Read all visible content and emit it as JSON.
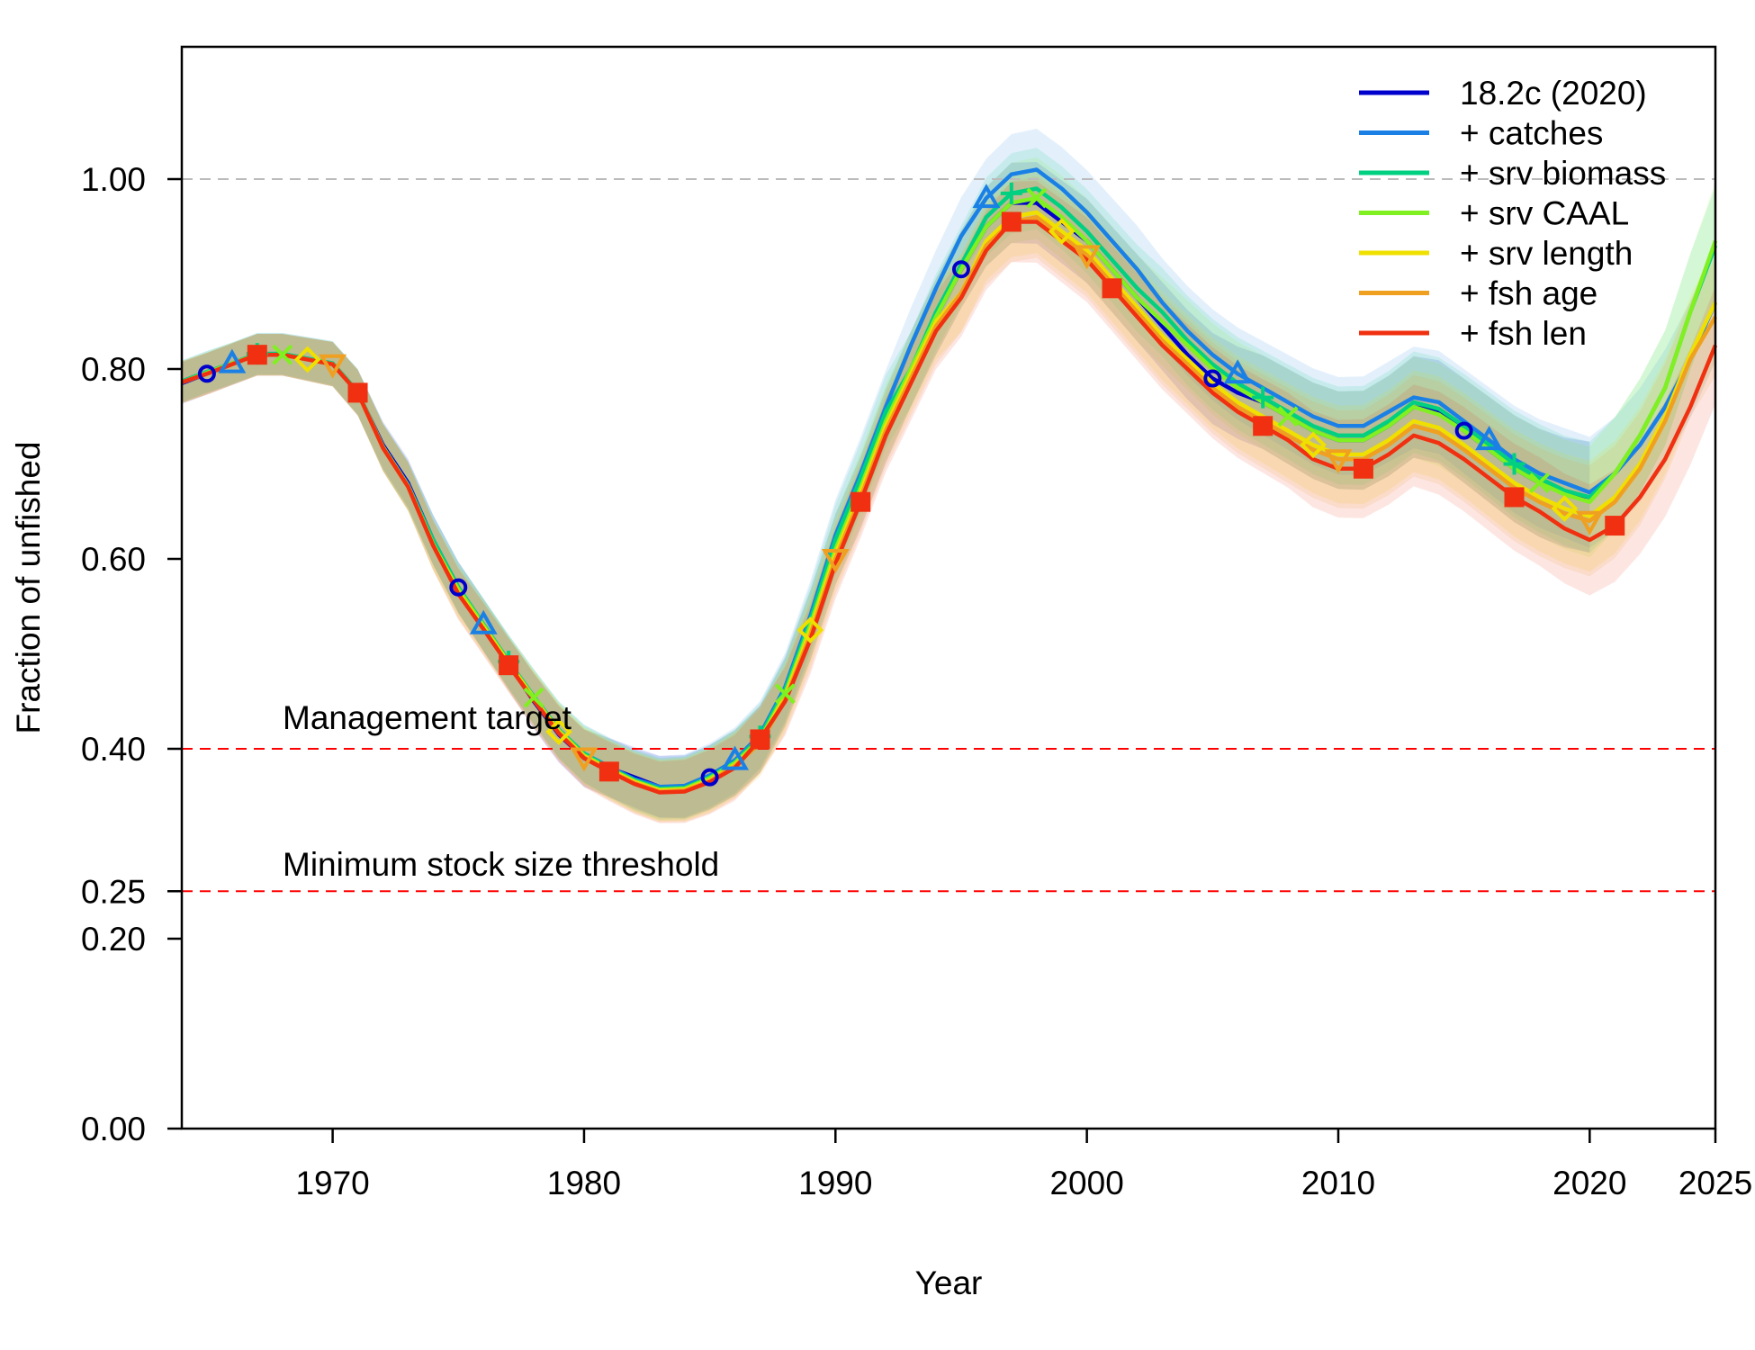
{
  "chart_data": {
    "type": "line",
    "xlabel": "Year",
    "ylabel": "Fraction of unfished",
    "xlim": [
      1964,
      2025
    ],
    "ylim": [
      0,
      1.1
    ],
    "x_ticks": [
      1970,
      1980,
      1990,
      2000,
      2010,
      2020,
      2025
    ],
    "x_tick_labels": [
      "1970",
      "1980",
      "1990",
      "2000",
      "2010",
      "2020",
      "2025"
    ],
    "y_ticks": [
      0,
      0.2,
      0.25,
      0.4,
      0.6,
      0.8,
      1.0
    ],
    "y_tick_labels": [
      "0.00",
      "0.20",
      "0.25",
      "0.40",
      "0.60",
      "0.80",
      "1.00"
    ],
    "grid": false,
    "legend_position": "top-right",
    "reference_lines": [
      {
        "y": 1.0,
        "color": "#bbbbbb",
        "label": ""
      },
      {
        "y": 0.4,
        "color": "#ff0000",
        "label": "Management target"
      },
      {
        "y": 0.25,
        "color": "#ff0000",
        "label": "Minimum stock size threshold"
      }
    ],
    "years": [
      1964,
      1965,
      1966,
      1967,
      1968,
      1969,
      1970,
      1971,
      1972,
      1973,
      1974,
      1975,
      1976,
      1977,
      1978,
      1979,
      1980,
      1981,
      1982,
      1983,
      1984,
      1985,
      1986,
      1987,
      1988,
      1989,
      1990,
      1991,
      1992,
      1993,
      1994,
      1995,
      1996,
      1997,
      1998,
      1999,
      2000,
      2001,
      2002,
      2003,
      2004,
      2005,
      2006,
      2007,
      2008,
      2009,
      2010,
      2011,
      2012,
      2013,
      2014,
      2015,
      2016,
      2017,
      2018,
      2019,
      2020,
      2021,
      2022,
      2023,
      2024,
      2025
    ],
    "series": [
      {
        "name": "18.2c (2020)",
        "color": "#0000cc",
        "marker": "circle",
        "values": [
          0.785,
          0.795,
          0.805,
          0.815,
          0.815,
          0.81,
          0.805,
          0.775,
          0.72,
          0.68,
          0.62,
          0.57,
          0.53,
          0.49,
          0.45,
          0.415,
          0.39,
          0.38,
          0.37,
          0.36,
          0.36,
          0.37,
          0.385,
          0.41,
          0.46,
          0.53,
          0.61,
          0.67,
          0.74,
          0.8,
          0.855,
          0.905,
          0.95,
          0.975,
          0.975,
          0.955,
          0.935,
          0.905,
          0.875,
          0.845,
          0.815,
          0.79,
          0.775,
          0.765,
          0.75,
          0.735,
          0.725,
          0.725,
          0.74,
          0.76,
          0.755,
          0.735,
          0.715,
          0.695,
          0.68,
          0.67,
          0.665,
          null,
          null,
          null,
          null,
          null
        ]
      },
      {
        "name": "+ catches",
        "color": "#1a80e6",
        "marker": "triangle",
        "values": [
          0.787,
          0.797,
          0.806,
          0.816,
          0.816,
          0.811,
          0.806,
          0.776,
          0.718,
          0.678,
          0.62,
          0.57,
          0.531,
          0.492,
          0.455,
          0.42,
          0.395,
          0.381,
          0.368,
          0.36,
          0.361,
          0.372,
          0.388,
          0.415,
          0.465,
          0.54,
          0.625,
          0.69,
          0.76,
          0.825,
          0.885,
          0.94,
          0.98,
          1.005,
          1.01,
          0.99,
          0.965,
          0.935,
          0.905,
          0.87,
          0.84,
          0.815,
          0.795,
          0.78,
          0.765,
          0.75,
          0.74,
          0.74,
          0.755,
          0.77,
          0.765,
          0.745,
          0.725,
          0.705,
          0.69,
          0.68,
          0.67,
          0.69,
          0.72,
          0.76,
          0.81,
          0.87
        ]
      },
      {
        "name": "+ srv biomass",
        "color": "#00d080",
        "marker": "plus",
        "values": [
          0.787,
          0.797,
          0.806,
          0.816,
          0.816,
          0.811,
          0.806,
          0.776,
          0.718,
          0.677,
          0.62,
          0.57,
          0.531,
          0.492,
          0.455,
          0.42,
          0.395,
          0.38,
          0.367,
          0.358,
          0.359,
          0.37,
          0.386,
          0.413,
          0.462,
          0.535,
          0.62,
          0.685,
          0.755,
          0.8,
          0.86,
          0.91,
          0.96,
          0.985,
          0.99,
          0.97,
          0.945,
          0.915,
          0.885,
          0.86,
          0.83,
          0.805,
          0.785,
          0.77,
          0.755,
          0.74,
          0.73,
          0.73,
          0.745,
          0.765,
          0.758,
          0.74,
          0.72,
          0.7,
          0.685,
          0.672,
          0.665,
          0.69,
          0.73,
          0.78,
          0.86,
          0.93
        ]
      },
      {
        "name": "+ srv CAAL",
        "color": "#80f020",
        "marker": "cross",
        "values": [
          0.786,
          0.796,
          0.806,
          0.815,
          0.815,
          0.81,
          0.805,
          0.775,
          0.718,
          0.677,
          0.615,
          0.568,
          0.53,
          0.491,
          0.454,
          0.419,
          0.393,
          0.379,
          0.366,
          0.357,
          0.358,
          0.369,
          0.385,
          0.41,
          0.458,
          0.53,
          0.61,
          0.675,
          0.745,
          0.8,
          0.855,
          0.905,
          0.95,
          0.975,
          0.98,
          0.96,
          0.935,
          0.905,
          0.875,
          0.85,
          0.825,
          0.8,
          0.78,
          0.765,
          0.75,
          0.735,
          0.725,
          0.725,
          0.74,
          0.76,
          0.752,
          0.735,
          0.715,
          0.695,
          0.68,
          0.668,
          0.66,
          0.69,
          0.73,
          0.78,
          0.86,
          0.935
        ]
      },
      {
        "name": "+ srv length",
        "color": "#f0e000",
        "marker": "diamond",
        "values": [
          0.786,
          0.795,
          0.805,
          0.815,
          0.815,
          0.81,
          0.805,
          0.775,
          0.717,
          0.676,
          0.615,
          0.565,
          0.528,
          0.49,
          0.453,
          0.418,
          0.392,
          0.378,
          0.365,
          0.356,
          0.357,
          0.367,
          0.383,
          0.408,
          0.455,
          0.525,
          0.605,
          0.67,
          0.74,
          0.795,
          0.85,
          0.88,
          0.935,
          0.96,
          0.965,
          0.945,
          0.925,
          0.895,
          0.865,
          0.835,
          0.81,
          0.785,
          0.765,
          0.75,
          0.735,
          0.72,
          0.71,
          0.71,
          0.725,
          0.745,
          0.738,
          0.72,
          0.7,
          0.68,
          0.665,
          0.653,
          0.645,
          0.665,
          0.7,
          0.75,
          0.815,
          0.87
        ]
      },
      {
        "name": "+ fsh age",
        "color": "#f0a020",
        "marker": "triangle-down",
        "values": [
          0.786,
          0.795,
          0.805,
          0.815,
          0.815,
          0.81,
          0.805,
          0.775,
          0.717,
          0.676,
          0.614,
          0.563,
          0.526,
          0.488,
          0.452,
          0.417,
          0.391,
          0.377,
          0.364,
          0.355,
          0.356,
          0.366,
          0.382,
          0.406,
          0.452,
          0.52,
          0.6,
          0.665,
          0.735,
          0.79,
          0.845,
          0.88,
          0.93,
          0.955,
          0.96,
          0.94,
          0.92,
          0.89,
          0.86,
          0.83,
          0.805,
          0.78,
          0.76,
          0.745,
          0.73,
          0.715,
          0.705,
          0.705,
          0.72,
          0.74,
          0.733,
          0.715,
          0.695,
          0.675,
          0.66,
          0.648,
          0.64,
          0.66,
          0.695,
          0.745,
          0.81,
          0.855
        ]
      },
      {
        "name": "+ fsh len",
        "color": "#f03010",
        "marker": "square",
        "values": [
          0.786,
          0.795,
          0.805,
          0.815,
          0.815,
          0.81,
          0.805,
          0.775,
          0.717,
          0.676,
          0.614,
          0.563,
          0.526,
          0.488,
          0.451,
          0.416,
          0.39,
          0.376,
          0.363,
          0.354,
          0.355,
          0.365,
          0.38,
          0.41,
          0.45,
          0.515,
          0.595,
          0.66,
          0.73,
          0.785,
          0.84,
          0.875,
          0.925,
          0.955,
          0.955,
          0.935,
          0.915,
          0.885,
          0.855,
          0.825,
          0.8,
          0.775,
          0.755,
          0.74,
          0.725,
          0.705,
          0.695,
          0.695,
          0.71,
          0.73,
          0.722,
          0.705,
          0.685,
          0.665,
          0.65,
          0.632,
          0.62,
          0.635,
          0.665,
          0.705,
          0.76,
          0.825
        ]
      }
    ]
  }
}
